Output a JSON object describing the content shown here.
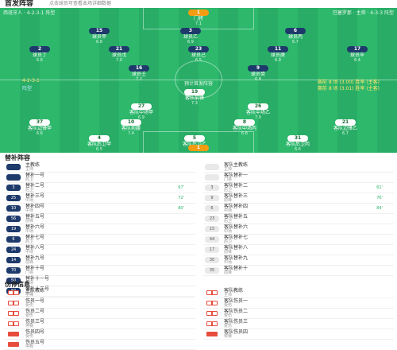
{
  "header": {
    "title": "首发阵容",
    "note": "点击球员可查看本场详细数据"
  },
  "pitch": {
    "home_team": "西班牙人 · 4-2-3-1 阵型",
    "away_team": "巴塞罗那 · 主帅 · 4-3-3 阵型",
    "coach_line": "主帅",
    "formation_home": "4-2-3-1",
    "formation_home_label": "阵型",
    "info_away": "赛前 8 场 (3.00) 胜率 (主客)",
    "info_away2": "赛前 8 场 (3.01) 胜率 (主客)",
    "center": "预计首发阵容",
    "players": [
      {
        "num": "1",
        "name": "门将",
        "rating": "7.1",
        "kit": "gk"
      },
      {
        "num": "15",
        "name": "球员甲",
        "rating": "6.8",
        "kit": "home"
      },
      {
        "num": "3",
        "name": "球员乙",
        "rating": "6.9",
        "kit": "home"
      },
      {
        "num": "6",
        "name": "球员丙",
        "rating": "6.7",
        "kit": "home"
      },
      {
        "num": "2",
        "name": "球员丁",
        "rating": "6.6",
        "kit": "home"
      },
      {
        "num": "21",
        "name": "球员戊",
        "rating": "7.0",
        "kit": "home"
      },
      {
        "num": "23",
        "name": "球员己",
        "rating": "6.5",
        "kit": "home"
      },
      {
        "num": "11",
        "name": "球员庚",
        "rating": "6.9",
        "kit": "home"
      },
      {
        "num": "17",
        "name": "球员辛",
        "rating": "6.4",
        "kit": "home"
      },
      {
        "num": "16",
        "name": "球员壬",
        "rating": "7.2",
        "kit": "home"
      },
      {
        "num": "9",
        "name": "球员癸",
        "rating": "6.8",
        "kit": "home"
      },
      {
        "num": "19",
        "name": "客队前锋",
        "rating": "7.3",
        "kit": "away"
      },
      {
        "num": "27",
        "name": "客队中场甲",
        "rating": "6.9",
        "kit": "away"
      },
      {
        "num": "26",
        "name": "客队中场乙",
        "rating": "7.0",
        "kit": "away"
      },
      {
        "num": "37",
        "name": "客队边锋甲",
        "rating": "6.6",
        "kit": "away"
      },
      {
        "num": "10",
        "name": "客队前腰",
        "rating": "7.4",
        "kit": "away"
      },
      {
        "num": "8",
        "name": "客队中场丙",
        "rating": "6.8",
        "kit": "away"
      },
      {
        "num": "21",
        "name": "客队边锋乙",
        "rating": "6.7",
        "kit": "away"
      },
      {
        "num": "4",
        "name": "客队后卫甲",
        "rating": "6.5",
        "kit": "away"
      },
      {
        "num": "5",
        "name": "客队后卫乙",
        "rating": "6.9",
        "kit": "away"
      },
      {
        "num": "31",
        "name": "客队后卫丙",
        "rating": "6.6",
        "kit": "away"
      },
      {
        "num": "1",
        "name": "客队门将",
        "rating": "7.0",
        "kit": "gk"
      }
    ]
  },
  "subs": {
    "title": "替补阵容",
    "home": [
      {
        "num": "",
        "name": "主教练",
        "sub": "主帅"
      },
      {
        "num": "",
        "name": "替补一号",
        "sub": "后卫"
      },
      {
        "num": "3",
        "name": "替补二号",
        "sub": "后卫",
        "time": "67'"
      },
      {
        "num": "25",
        "name": "替补三号",
        "sub": "中场",
        "time": "72'"
      },
      {
        "num": "10",
        "name": "替补四号",
        "sub": "中场",
        "time": "80'"
      },
      {
        "num": "56",
        "name": "替补五号",
        "sub": "前锋"
      },
      {
        "num": "19",
        "name": "替补六号",
        "sub": "中场"
      },
      {
        "num": "6",
        "name": "替补七号",
        "sub": "后卫"
      },
      {
        "num": "24",
        "name": "替补八号",
        "sub": "中场"
      },
      {
        "num": "14",
        "name": "替补九号",
        "sub": "前锋"
      },
      {
        "num": "70",
        "name": "替补十号",
        "sub": "门将"
      },
      {
        "num": "50",
        "name": "替补十一号",
        "sub": "中场"
      },
      {
        "num": "84",
        "name": "替补十二号",
        "sub": "后卫"
      }
    ],
    "away": [
      {
        "num": "",
        "name": "客队主教练",
        "sub": "主帅"
      },
      {
        "num": "",
        "name": "客队替补一",
        "sub": "门将"
      },
      {
        "num": "3",
        "name": "客队替补二",
        "sub": "后卫",
        "time": "61'"
      },
      {
        "num": "9",
        "name": "客队替补三",
        "sub": "前锋",
        "time": "76'"
      },
      {
        "num": "6",
        "name": "客队替补四",
        "sub": "中场",
        "time": "84'"
      },
      {
        "num": "23",
        "name": "客队替补五",
        "sub": "后卫"
      },
      {
        "num": "15",
        "name": "客队替补六",
        "sub": "中场"
      },
      {
        "num": "44",
        "name": "客队替补七",
        "sub": "后卫"
      },
      {
        "num": "17",
        "name": "客队替补八",
        "sub": "前锋"
      },
      {
        "num": "30",
        "name": "客队替补九",
        "sub": "中场"
      },
      {
        "num": "35",
        "name": "客队替补十",
        "sub": "前锋"
      }
    ]
  },
  "injuries": {
    "title": "伤停信息",
    "home": [
      {
        "name": "主队教练",
        "sub": "主帅"
      },
      {
        "name": "伤员一号",
        "sub": "受伤"
      },
      {
        "name": "伤员二号",
        "sub": "受伤"
      },
      {
        "name": "伤员三号",
        "sub": "停赛"
      },
      {
        "name": "伤员四号",
        "sub": "受伤"
      },
      {
        "name": "伤员五号",
        "sub": "停赛"
      }
    ],
    "away": [
      {
        "name": "客队教练",
        "sub": "主帅"
      },
      {
        "name": "客队伤员一",
        "sub": "受伤"
      },
      {
        "name": "客队伤员二",
        "sub": "受伤"
      },
      {
        "name": "客队伤员三",
        "sub": "受伤"
      },
      {
        "name": "客队伤员四",
        "sub": "停赛"
      }
    ]
  },
  "colors": {
    "pitch": "#2bb56a",
    "home_kit": "#1e3a6b",
    "gk_kit": "#f39c12",
    "injury_red": "#e74c3c"
  }
}
